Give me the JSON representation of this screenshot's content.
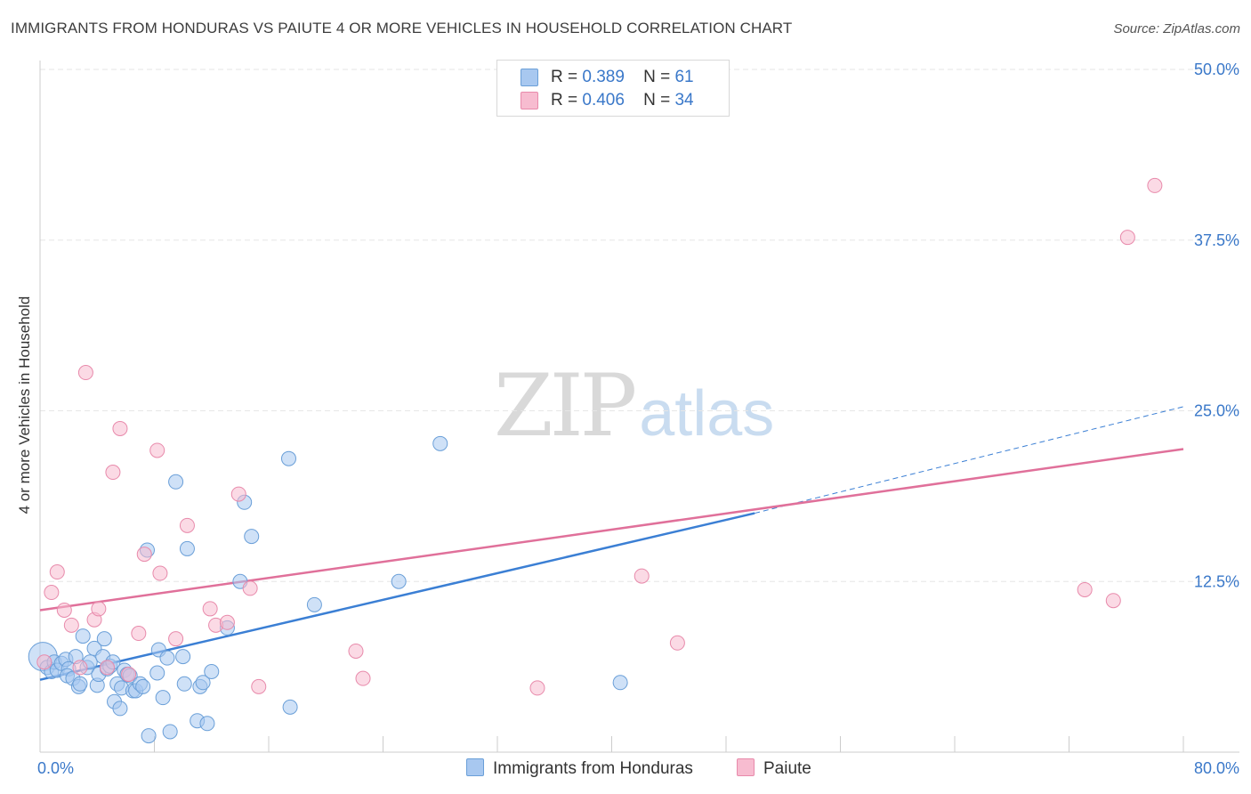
{
  "title": "IMMIGRANTS FROM HONDURAS VS PAIUTE 4 OR MORE VEHICLES IN HOUSEHOLD CORRELATION CHART",
  "source": "Source: ZipAtlas.com",
  "watermark": {
    "zip": "ZIP",
    "atlas": "atlas"
  },
  "legend": {
    "rows": [
      {
        "r_label": "R =",
        "r_value": "0.389",
        "n_label": "N =",
        "n_value": "61"
      },
      {
        "r_label": "R =",
        "r_value": "0.406",
        "n_label": "N =",
        "n_value": "34"
      }
    ]
  },
  "colors": {
    "blue_fill": "#a8c8f0",
    "blue_stroke": "#6a9fd8",
    "blue_line": "#3b7fd4",
    "pink_fill": "#f7bcd0",
    "pink_stroke": "#e88aab",
    "pink_line": "#e0709a",
    "tick_label": "#3a78c9",
    "grid": "#e6e6e6"
  },
  "chart_data": {
    "type": "scatter",
    "title": "IMMIGRANTS FROM HONDURAS VS PAIUTE 4 OR MORE VEHICLES IN HOUSEHOLD CORRELATION CHART",
    "xlabel": "",
    "ylabel": "4 or more Vehicles in Household",
    "xlim": [
      0,
      80
    ],
    "ylim": [
      0,
      50
    ],
    "x_tick_labels": [
      "0.0%",
      "80.0%"
    ],
    "y_ticks": [
      12.5,
      25.0,
      37.5,
      50.0
    ],
    "y_tick_labels": [
      "12.5%",
      "25.0%",
      "37.5%",
      "50.0%"
    ],
    "grid": true,
    "series": [
      {
        "name": "Immigrants from Honduras",
        "color": "#a8c8f0",
        "r": 0.389,
        "n": 61,
        "trend": {
          "x0": 0,
          "y0": 5.3,
          "x1": 50,
          "y1": 17.5,
          "dash_to_x": 80,
          "dash_to_y": 25.3
        },
        "points": [
          [
            0.2,
            7.0
          ],
          [
            0.5,
            6.2
          ],
          [
            0.8,
            5.9
          ],
          [
            1.0,
            6.6
          ],
          [
            1.2,
            6.0
          ],
          [
            1.5,
            6.5
          ],
          [
            1.8,
            6.8
          ],
          [
            2.0,
            6.1
          ],
          [
            1.9,
            5.6
          ],
          [
            2.3,
            5.4
          ],
          [
            2.5,
            7.0
          ],
          [
            2.7,
            4.8
          ],
          [
            2.8,
            5.0
          ],
          [
            3.0,
            8.5
          ],
          [
            3.3,
            6.2
          ],
          [
            3.5,
            6.6
          ],
          [
            3.8,
            7.6
          ],
          [
            4.0,
            4.9
          ],
          [
            4.1,
            5.7
          ],
          [
            4.4,
            7.0
          ],
          [
            4.5,
            8.3
          ],
          [
            4.7,
            6.1
          ],
          [
            4.9,
            6.3
          ],
          [
            5.1,
            6.6
          ],
          [
            5.2,
            3.7
          ],
          [
            5.4,
            5.0
          ],
          [
            5.6,
            3.2
          ],
          [
            5.7,
            4.7
          ],
          [
            5.9,
            6.0
          ],
          [
            6.1,
            5.7
          ],
          [
            6.3,
            5.6
          ],
          [
            6.5,
            4.5
          ],
          [
            6.7,
            4.5
          ],
          [
            7.0,
            5.0
          ],
          [
            7.2,
            4.8
          ],
          [
            7.6,
            1.2
          ],
          [
            7.5,
            14.8
          ],
          [
            8.2,
            5.8
          ],
          [
            8.3,
            7.5
          ],
          [
            8.6,
            4.0
          ],
          [
            8.9,
            6.9
          ],
          [
            9.1,
            1.5
          ],
          [
            9.5,
            19.8
          ],
          [
            10.0,
            7.0
          ],
          [
            10.1,
            5.0
          ],
          [
            10.3,
            14.9
          ],
          [
            11.2,
            4.8
          ],
          [
            11.0,
            2.3
          ],
          [
            11.4,
            5.1
          ],
          [
            11.7,
            2.1
          ],
          [
            12.0,
            5.9
          ],
          [
            13.1,
            9.1
          ],
          [
            14.0,
            12.5
          ],
          [
            14.3,
            18.3
          ],
          [
            14.8,
            15.8
          ],
          [
            17.4,
            21.5
          ],
          [
            17.5,
            3.3
          ],
          [
            19.2,
            10.8
          ],
          [
            25.1,
            12.5
          ],
          [
            28.0,
            22.6
          ],
          [
            40.6,
            5.1
          ]
        ]
      },
      {
        "name": "Paiute",
        "color": "#f7bcd0",
        "r": 0.406,
        "n": 34,
        "trend": {
          "x0": 0,
          "y0": 10.4,
          "x1": 80,
          "y1": 22.2
        },
        "points": [
          [
            0.3,
            6.6
          ],
          [
            0.8,
            11.7
          ],
          [
            1.2,
            13.2
          ],
          [
            1.7,
            10.4
          ],
          [
            2.2,
            9.3
          ],
          [
            2.8,
            6.2
          ],
          [
            3.2,
            27.8
          ],
          [
            3.8,
            9.7
          ],
          [
            4.1,
            10.5
          ],
          [
            4.7,
            6.2
          ],
          [
            5.1,
            20.5
          ],
          [
            5.6,
            23.7
          ],
          [
            6.2,
            5.7
          ],
          [
            6.9,
            8.7
          ],
          [
            7.3,
            14.5
          ],
          [
            8.2,
            22.1
          ],
          [
            8.4,
            13.1
          ],
          [
            9.5,
            8.3
          ],
          [
            10.3,
            16.6
          ],
          [
            11.9,
            10.5
          ],
          [
            12.3,
            9.3
          ],
          [
            13.1,
            9.5
          ],
          [
            13.9,
            18.9
          ],
          [
            14.7,
            12.0
          ],
          [
            15.3,
            4.8
          ],
          [
            22.1,
            7.4
          ],
          [
            22.6,
            5.4
          ],
          [
            34.8,
            4.7
          ],
          [
            42.1,
            12.9
          ],
          [
            44.6,
            8.0
          ],
          [
            73.1,
            11.9
          ],
          [
            75.1,
            11.1
          ],
          [
            76.1,
            37.7
          ],
          [
            78.0,
            41.5
          ]
        ]
      }
    ]
  }
}
